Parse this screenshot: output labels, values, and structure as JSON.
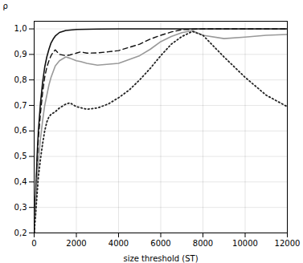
{
  "chart_data": {
    "type": "line",
    "xlabel": "size threshold (ST)",
    "ylabel": "ρ",
    "xlim": [
      0,
      12000
    ],
    "ylim": [
      0.2,
      1.03
    ],
    "xticks": [
      0,
      2000,
      4000,
      6000,
      8000,
      10000,
      12000
    ],
    "yticks": [
      {
        "value": 0.2,
        "label": "0,2"
      },
      {
        "value": 0.3,
        "label": "0,3"
      },
      {
        "value": 0.4,
        "label": "0,4"
      },
      {
        "value": 0.5,
        "label": "0,5"
      },
      {
        "value": 0.6,
        "label": "0,6"
      },
      {
        "value": 0.7,
        "label": "0,7"
      },
      {
        "value": 0.8,
        "label": "0,8"
      },
      {
        "value": 0.9,
        "label": "0,9"
      },
      {
        "value": 1.0,
        "label": "1,0"
      }
    ],
    "grid": true,
    "series": [
      {
        "color": "#111111",
        "line_style": "solid",
        "x": [
          0,
          50,
          100,
          150,
          200,
          300,
          400,
          500,
          600,
          700,
          800,
          900,
          1000,
          1200,
          1500,
          2000,
          3000,
          4000,
          6000,
          8000,
          10000,
          12000
        ],
        "values": [
          0.2,
          0.3,
          0.42,
          0.52,
          0.6,
          0.71,
          0.79,
          0.85,
          0.89,
          0.92,
          0.945,
          0.96,
          0.972,
          0.986,
          0.994,
          0.998,
          0.9995,
          1.0,
          1.0,
          1.0,
          1.0,
          1.0
        ]
      },
      {
        "color": "#111111",
        "line_style": "dashed",
        "x": [
          0,
          50,
          100,
          150,
          200,
          300,
          400,
          500,
          600,
          700,
          800,
          900,
          1000,
          1200,
          1500,
          1700,
          2000,
          2200,
          2500,
          3000,
          3500,
          4000,
          5000,
          5500,
          6000,
          6500,
          7000,
          8000,
          9000,
          10000,
          12000
        ],
        "values": [
          0.2,
          0.29,
          0.4,
          0.49,
          0.57,
          0.67,
          0.75,
          0.81,
          0.85,
          0.875,
          0.895,
          0.908,
          0.918,
          0.9,
          0.895,
          0.898,
          0.905,
          0.91,
          0.905,
          0.906,
          0.91,
          0.915,
          0.94,
          0.96,
          0.975,
          0.988,
          0.997,
          1.0,
          1.0,
          1.0,
          1.0
        ]
      },
      {
        "color": "#999999",
        "line_style": "solid",
        "x": [
          0,
          50,
          100,
          200,
          300,
          400,
          500,
          600,
          700,
          800,
          1000,
          1200,
          1500,
          1700,
          2000,
          2200,
          2500,
          3000,
          4000,
          5000,
          5500,
          6000,
          6500,
          7000,
          7500,
          8000,
          9000,
          10000,
          11000,
          12000
        ],
        "values": [
          0.2,
          0.27,
          0.35,
          0.48,
          0.57,
          0.64,
          0.7,
          0.74,
          0.78,
          0.81,
          0.855,
          0.875,
          0.89,
          0.885,
          0.875,
          0.872,
          0.865,
          0.858,
          0.865,
          0.895,
          0.92,
          0.95,
          0.97,
          0.985,
          0.993,
          0.975,
          0.962,
          0.968,
          0.975,
          0.978
        ]
      },
      {
        "color": "#222222",
        "line_style": "dotted",
        "x": [
          0,
          50,
          100,
          200,
          300,
          400,
          500,
          600,
          700,
          800,
          1000,
          1200,
          1500,
          1700,
          2000,
          2500,
          3000,
          3500,
          4000,
          4500,
          5000,
          5500,
          6000,
          6500,
          7000,
          7500,
          8000,
          9000,
          10000,
          11000,
          12000
        ],
        "values": [
          0.2,
          0.25,
          0.31,
          0.42,
          0.49,
          0.55,
          0.6,
          0.635,
          0.655,
          0.665,
          0.675,
          0.69,
          0.705,
          0.71,
          0.695,
          0.685,
          0.69,
          0.705,
          0.73,
          0.76,
          0.8,
          0.845,
          0.895,
          0.94,
          0.97,
          0.99,
          0.975,
          0.89,
          0.81,
          0.74,
          0.695
        ]
      }
    ]
  }
}
